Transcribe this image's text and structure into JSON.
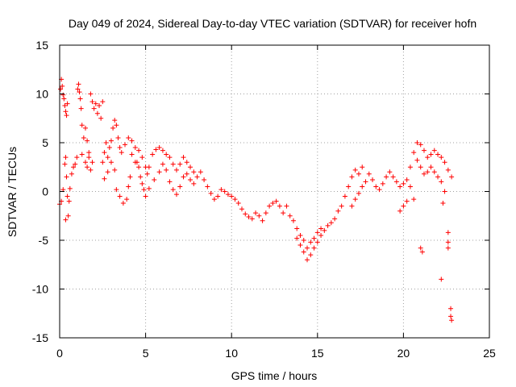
{
  "chart_data": {
    "type": "scatter",
    "title": "Day 049 of 2024, Sidereal Day-to-day VTEC variation (SDTVAR) for receiver hofn",
    "xlabel": "GPS time / hours",
    "ylabel": "SDTVAR / TECUs",
    "xlim": [
      0,
      25
    ],
    "ylim": [
      -15,
      15
    ],
    "xticks": [
      0,
      5,
      10,
      15,
      20,
      25
    ],
    "yticks": [
      -15,
      -10,
      -5,
      0,
      5,
      10,
      15
    ],
    "grid": true,
    "marker": "+",
    "color": "#ff0000",
    "series": [
      {
        "name": "SDTVAR",
        "points": [
          [
            0.0,
            -1.3
          ],
          [
            0.05,
            10.5
          ],
          [
            0.1,
            11.5
          ],
          [
            0.15,
            10.8
          ],
          [
            0.2,
            9.9
          ],
          [
            0.25,
            9.5
          ],
          [
            0.3,
            8.8
          ],
          [
            0.35,
            8.2
          ],
          [
            0.4,
            7.8
          ],
          [
            0.45,
            9.0
          ],
          [
            0.1,
            -1.0
          ],
          [
            0.2,
            0.2
          ],
          [
            0.3,
            2.8
          ],
          [
            0.35,
            3.5
          ],
          [
            0.4,
            1.5
          ],
          [
            0.45,
            -0.5
          ],
          [
            0.5,
            -2.5
          ],
          [
            0.35,
            -2.9
          ],
          [
            0.55,
            -1.0
          ],
          [
            0.6,
            0.3
          ],
          [
            0.7,
            1.8
          ],
          [
            0.8,
            2.5
          ],
          [
            0.9,
            2.8
          ],
          [
            1.0,
            3.5
          ],
          [
            1.05,
            10.5
          ],
          [
            1.1,
            11.0
          ],
          [
            1.15,
            10.2
          ],
          [
            1.2,
            9.5
          ],
          [
            1.25,
            8.5
          ],
          [
            1.3,
            6.8
          ],
          [
            1.3,
            3.8
          ],
          [
            1.4,
            5.5
          ],
          [
            1.5,
            6.5
          ],
          [
            1.6,
            5.2
          ],
          [
            1.7,
            4.0
          ],
          [
            1.5,
            3.0
          ],
          [
            1.6,
            2.5
          ],
          [
            1.7,
            3.5
          ],
          [
            1.8,
            2.2
          ],
          [
            1.9,
            3.0
          ],
          [
            1.8,
            10.0
          ],
          [
            1.9,
            9.2
          ],
          [
            2.0,
            8.5
          ],
          [
            2.1,
            9.0
          ],
          [
            2.2,
            8.0
          ],
          [
            2.3,
            8.8
          ],
          [
            2.4,
            7.5
          ],
          [
            2.5,
            9.2
          ],
          [
            2.5,
            3.0
          ],
          [
            2.6,
            4.0
          ],
          [
            2.7,
            5.0
          ],
          [
            2.8,
            3.5
          ],
          [
            2.9,
            4.5
          ],
          [
            3.0,
            5.2
          ],
          [
            3.1,
            6.5
          ],
          [
            3.2,
            7.3
          ],
          [
            3.3,
            6.8
          ],
          [
            3.4,
            5.5
          ],
          [
            3.5,
            4.5
          ],
          [
            3.6,
            4.0
          ],
          [
            2.6,
            1.3
          ],
          [
            2.8,
            2.0
          ],
          [
            3.0,
            3.0
          ],
          [
            3.2,
            2.2
          ],
          [
            3.3,
            0.2
          ],
          [
            3.5,
            -0.5
          ],
          [
            3.7,
            -1.2
          ],
          [
            3.9,
            -0.8
          ],
          [
            4.0,
            0.5
          ],
          [
            4.1,
            1.5
          ],
          [
            3.8,
            4.8
          ],
          [
            4.0,
            5.5
          ],
          [
            4.2,
            5.2
          ],
          [
            4.4,
            4.5
          ],
          [
            4.5,
            3.0
          ],
          [
            4.6,
            2.5
          ],
          [
            4.7,
            1.5
          ],
          [
            4.8,
            0.8
          ],
          [
            4.9,
            0.2
          ],
          [
            5.0,
            -0.5
          ],
          [
            4.2,
            3.8
          ],
          [
            4.4,
            3.0
          ],
          [
            4.6,
            4.2
          ],
          [
            4.8,
            3.5
          ],
          [
            5.0,
            2.5
          ],
          [
            5.1,
            1.8
          ],
          [
            5.2,
            2.5
          ],
          [
            5.4,
            3.8
          ],
          [
            5.6,
            4.3
          ],
          [
            5.8,
            4.5
          ],
          [
            6.0,
            4.2
          ],
          [
            6.2,
            3.8
          ],
          [
            6.4,
            3.5
          ],
          [
            6.6,
            2.8
          ],
          [
            6.8,
            2.2
          ],
          [
            7.0,
            2.8
          ],
          [
            7.2,
            3.5
          ],
          [
            7.4,
            3.0
          ],
          [
            7.6,
            2.5
          ],
          [
            7.8,
            2.0
          ],
          [
            5.2,
            0.3
          ],
          [
            5.5,
            1.2
          ],
          [
            5.8,
            2.0
          ],
          [
            6.0,
            2.8
          ],
          [
            6.2,
            2.2
          ],
          [
            6.4,
            1.0
          ],
          [
            6.6,
            0.2
          ],
          [
            6.8,
            -0.3
          ],
          [
            7.0,
            0.5
          ],
          [
            7.2,
            1.5
          ],
          [
            7.4,
            1.8
          ],
          [
            7.6,
            1.2
          ],
          [
            7.8,
            0.8
          ],
          [
            8.0,
            1.5
          ],
          [
            8.2,
            2.0
          ],
          [
            8.4,
            1.2
          ],
          [
            8.6,
            0.5
          ],
          [
            8.8,
            -0.2
          ],
          [
            9.0,
            -0.8
          ],
          [
            9.2,
            -0.5
          ],
          [
            9.4,
            0.2
          ],
          [
            9.6,
            0.0
          ],
          [
            9.8,
            -0.3
          ],
          [
            10.0,
            -0.5
          ],
          [
            10.2,
            -0.8
          ],
          [
            10.4,
            -1.2
          ],
          [
            10.6,
            -1.8
          ],
          [
            10.8,
            -2.3
          ],
          [
            11.0,
            -2.6
          ],
          [
            11.2,
            -2.8
          ],
          [
            11.4,
            -2.2
          ],
          [
            11.6,
            -2.5
          ],
          [
            11.8,
            -3.0
          ],
          [
            12.0,
            -2.2
          ],
          [
            12.2,
            -1.5
          ],
          [
            12.4,
            -1.2
          ],
          [
            12.6,
            -1.0
          ],
          [
            12.8,
            -1.5
          ],
          [
            13.0,
            -2.2
          ],
          [
            13.2,
            -1.5
          ],
          [
            13.4,
            -2.5
          ],
          [
            13.6,
            -3.0
          ],
          [
            13.8,
            -3.8
          ],
          [
            14.0,
            -5.5
          ],
          [
            14.2,
            -6.2
          ],
          [
            14.4,
            -7.0
          ],
          [
            14.6,
            -6.5
          ],
          [
            14.8,
            -5.8
          ],
          [
            15.0,
            -5.2
          ],
          [
            15.2,
            -4.5
          ],
          [
            13.8,
            -4.8
          ],
          [
            14.0,
            -4.5
          ],
          [
            14.2,
            -5.0
          ],
          [
            14.4,
            -5.8
          ],
          [
            14.6,
            -5.2
          ],
          [
            14.8,
            -4.8
          ],
          [
            15.0,
            -4.2
          ],
          [
            15.2,
            -3.8
          ],
          [
            15.4,
            -4.0
          ],
          [
            15.6,
            -3.5
          ],
          [
            15.8,
            -3.2
          ],
          [
            16.0,
            -2.8
          ],
          [
            16.2,
            -2.0
          ],
          [
            16.4,
            -1.5
          ],
          [
            16.6,
            -0.5
          ],
          [
            16.8,
            0.5
          ],
          [
            17.0,
            1.5
          ],
          [
            17.2,
            2.2
          ],
          [
            17.4,
            1.8
          ],
          [
            17.6,
            2.5
          ],
          [
            17.0,
            -1.5
          ],
          [
            17.2,
            -0.8
          ],
          [
            17.4,
            -0.2
          ],
          [
            17.6,
            0.5
          ],
          [
            17.8,
            1.0
          ],
          [
            18.0,
            1.8
          ],
          [
            18.2,
            1.2
          ],
          [
            18.4,
            0.5
          ],
          [
            18.6,
            0.2
          ],
          [
            18.8,
            0.8
          ],
          [
            19.0,
            1.5
          ],
          [
            19.2,
            2.0
          ],
          [
            19.4,
            1.5
          ],
          [
            19.6,
            1.0
          ],
          [
            19.8,
            0.5
          ],
          [
            20.0,
            0.8
          ],
          [
            20.2,
            1.2
          ],
          [
            20.4,
            0.5
          ],
          [
            20.6,
            -0.8
          ],
          [
            19.8,
            -2.0
          ],
          [
            20.0,
            -1.5
          ],
          [
            20.2,
            -1.0
          ],
          [
            20.4,
            2.5
          ],
          [
            20.6,
            4.0
          ],
          [
            20.8,
            5.0
          ],
          [
            21.0,
            4.8
          ],
          [
            21.2,
            4.2
          ],
          [
            21.4,
            3.5
          ],
          [
            21.6,
            3.8
          ],
          [
            21.8,
            4.2
          ],
          [
            22.0,
            3.8
          ],
          [
            22.2,
            3.5
          ],
          [
            22.4,
            3.0
          ],
          [
            22.6,
            2.2
          ],
          [
            22.8,
            1.5
          ],
          [
            20.8,
            3.2
          ],
          [
            21.0,
            2.5
          ],
          [
            21.2,
            1.8
          ],
          [
            21.4,
            2.0
          ],
          [
            21.6,
            2.5
          ],
          [
            21.8,
            2.0
          ],
          [
            22.0,
            1.5
          ],
          [
            22.2,
            1.0
          ],
          [
            21.0,
            -5.8
          ],
          [
            21.1,
            -6.2
          ],
          [
            22.2,
            -9.0
          ],
          [
            22.3,
            -1.2
          ],
          [
            22.4,
            0.0
          ],
          [
            22.6,
            -4.2
          ],
          [
            22.6,
            -5.2
          ],
          [
            22.6,
            -5.8
          ],
          [
            22.75,
            -12.0
          ],
          [
            22.75,
            -12.8
          ],
          [
            22.8,
            -13.2
          ]
        ]
      }
    ]
  }
}
